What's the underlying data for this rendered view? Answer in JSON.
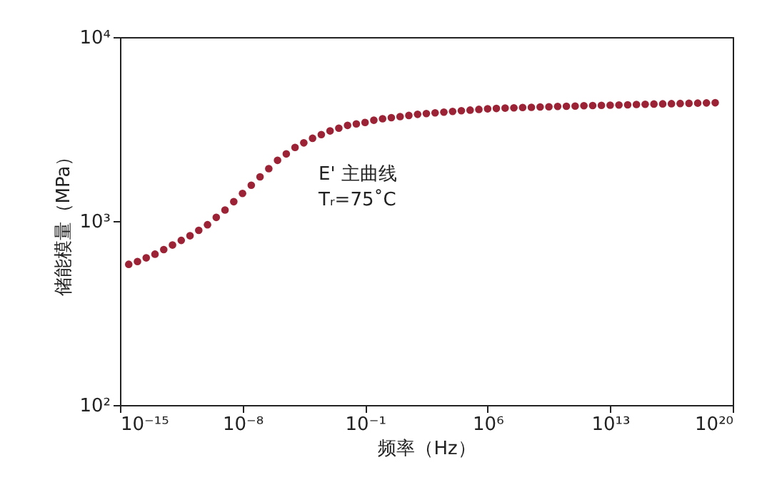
{
  "chart_data": {
    "type": "scatter",
    "xlabel": "频率（Hz）",
    "ylabel": "储能模量（MPa）",
    "log": "xy",
    "grid": false,
    "marker": "circle",
    "annotations": [
      "E' 主曲线",
      "Tᵣ=75˚C"
    ],
    "xlim": [
      1e-15,
      1e+20
    ],
    "ylim": [
      100,
      10000
    ],
    "xticks": [
      {
        "value": 1e-15,
        "label": "10⁻¹⁵"
      },
      {
        "value": 1e-08,
        "label": "10⁻⁸"
      },
      {
        "value": 0.1,
        "label": "10⁻¹"
      },
      {
        "value": 1000000.0,
        "label": "10⁶"
      },
      {
        "value": 10000000000000.0,
        "label": "10¹³"
      },
      {
        "value": 1e+20,
        "label": "10²⁰"
      }
    ],
    "yticks": [
      {
        "value": 100,
        "label": "10²"
      },
      {
        "value": 1000,
        "label": "10³"
      },
      {
        "value": 10000,
        "label": "10⁴"
      }
    ],
    "x": [
      3.16e-15,
      1e-14,
      3.16e-14,
      1e-13,
      3.16e-13,
      1e-12,
      3.16e-12,
      1e-11,
      3.16e-11,
      1e-10,
      3.16e-10,
      1e-09,
      3.16e-09,
      1e-08,
      3.16e-08,
      1e-07,
      3.16e-07,
      1e-06,
      3.16e-06,
      1e-05,
      3.16e-05,
      0.0001,
      0.000316,
      0.001,
      0.00316,
      0.01,
      0.0316,
      0.1,
      0.316,
      1,
      3.16,
      10,
      31.6,
      100,
      316,
      1000,
      3160,
      10000,
      31600,
      100000,
      316000,
      1000000.0,
      3160000.0,
      10000000.0,
      31600000.0,
      100000000.0,
      316000000.0,
      1000000000.0,
      3160000000.0,
      10000000000.0,
      31600000000.0,
      100000000000.0,
      316000000000.0,
      1000000000000.0,
      3160000000000.0,
      10000000000000.0,
      31600000000000.0,
      100000000000000.0,
      316000000000000.0,
      1000000000000000.0,
      3160000000000000.0,
      1e+16,
      3.16e+16,
      1e+17,
      3.16e+17,
      1e+18,
      3.16e+18,
      1e+19
    ],
    "series": [
      {
        "color": "#9b2335",
        "values": [
          582,
          603,
          631,
          661,
          700,
          741,
          785,
          832,
          891,
          955,
          1047,
          1148,
          1274,
          1413,
          1567,
          1738,
          1928,
          2138,
          2317,
          2512,
          2661,
          2818,
          2951,
          3090,
          3199,
          3311,
          3373,
          3436,
          3532,
          3597,
          3648,
          3698,
          3750,
          3802,
          3837,
          3873,
          3908,
          3945,
          3981,
          4009,
          4046,
          4074,
          4093,
          4111,
          4121,
          4140,
          4150,
          4169,
          4178,
          4198,
          4207,
          4217,
          4236,
          4246,
          4256,
          4266,
          4276,
          4285,
          4305,
          4315,
          4325,
          4335,
          4345,
          4355,
          4365,
          4375,
          4385,
          4395
        ]
      }
    ]
  }
}
